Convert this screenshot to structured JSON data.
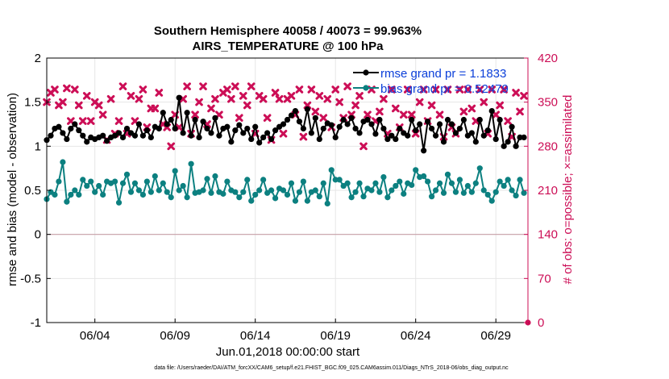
{
  "chart_data": {
    "type": "line",
    "title": "Southern Hemisphere 40058 / 40073 = 99.963%",
    "subtitle": "AIRS_TEMPERATURE @ 100 hPa",
    "xlabel": "Jun.01,2018 00:00:00 start",
    "ylabel": "rmse and bias (model - observation)",
    "ylabel_right": "# of obs: o=possible; ×=assimilated",
    "footnote": "data file: /Users/raeder/DAI/ATM_forcXX/CAM6_setup/f.e21.FHIST_BGC.f09_025.CAM6assim.011/Diags_NTrS_2018-06/obs_diag_output.nc",
    "xlim": [
      1.0,
      31.0
    ],
    "ylim": [
      -1,
      2
    ],
    "ylim_right": [
      0,
      420
    ],
    "x_ticks": [
      4,
      9,
      14,
      19,
      24,
      29
    ],
    "x_tick_labels": [
      "06/04",
      "06/09",
      "06/14",
      "06/19",
      "06/24",
      "06/29"
    ],
    "y_ticks": [
      -1,
      -0.5,
      0,
      0.5,
      1,
      1.5,
      2
    ],
    "y_tick_labels": [
      "-1",
      "-0.5",
      "0",
      "0.5",
      "1",
      "1.5",
      "2"
    ],
    "y_right_ticks": [
      0,
      70,
      140,
      210,
      280,
      350,
      420
    ],
    "y_right_tick_labels": [
      "0",
      "70",
      "140",
      "210",
      "280",
      "350",
      "420"
    ],
    "grid": true,
    "legend_position": "top-right",
    "x": [
      1.0,
      1.25,
      1.5,
      1.75,
      2.0,
      2.25,
      2.5,
      2.75,
      3.0,
      3.25,
      3.5,
      3.75,
      4.0,
      4.25,
      4.5,
      4.75,
      5.0,
      5.25,
      5.5,
      5.75,
      6.0,
      6.25,
      6.5,
      6.75,
      7.0,
      7.25,
      7.5,
      7.75,
      8.0,
      8.25,
      8.5,
      8.75,
      9.0,
      9.25,
      9.5,
      9.75,
      10.0,
      10.25,
      10.5,
      10.75,
      11.0,
      11.25,
      11.5,
      11.75,
      12.0,
      12.25,
      12.5,
      12.75,
      13.0,
      13.25,
      13.5,
      13.75,
      14.0,
      14.25,
      14.5,
      14.75,
      15.0,
      15.25,
      15.5,
      15.75,
      16.0,
      16.25,
      16.5,
      16.75,
      17.0,
      17.25,
      17.5,
      17.75,
      18.0,
      18.25,
      18.5,
      18.75,
      19.0,
      19.25,
      19.5,
      19.75,
      20.0,
      20.25,
      20.5,
      20.75,
      21.0,
      21.25,
      21.5,
      21.75,
      22.0,
      22.25,
      22.5,
      22.75,
      23.0,
      23.25,
      23.5,
      23.75,
      24.0,
      24.25,
      24.5,
      24.75,
      25.0,
      25.25,
      25.5,
      25.75,
      26.0,
      26.25,
      26.5,
      26.75,
      27.0,
      27.25,
      27.5,
      27.75,
      28.0,
      28.25,
      28.5,
      28.75,
      29.0,
      29.25,
      29.5,
      29.75,
      30.0,
      30.25,
      30.5,
      30.75
    ],
    "series": [
      {
        "name": "rmse grand pr = 1.1833",
        "axis": "left",
        "color": "#000000",
        "marker": "circle",
        "values": [
          1.07,
          1.12,
          1.2,
          1.22,
          1.15,
          1.08,
          1.2,
          1.25,
          1.18,
          1.12,
          1.05,
          1.1,
          1.08,
          1.1,
          1.12,
          1.06,
          1.1,
          1.12,
          1.15,
          1.1,
          1.2,
          1.15,
          1.12,
          1.25,
          1.12,
          1.18,
          1.1,
          1.22,
          1.2,
          1.38,
          1.25,
          1.3,
          1.2,
          1.55,
          1.15,
          1.38,
          1.12,
          1.3,
          1.1,
          1.28,
          1.2,
          1.15,
          1.32,
          1.12,
          1.2,
          1.22,
          1.05,
          1.18,
          1.24,
          1.15,
          1.2,
          1.08,
          1.22,
          1.04,
          1.1,
          1.15,
          1.08,
          1.18,
          1.22,
          1.25,
          1.3,
          1.35,
          1.4,
          1.28,
          1.2,
          1.42,
          1.15,
          1.32,
          1.08,
          1.2,
          1.26,
          1.24,
          1.1,
          1.22,
          1.3,
          1.25,
          1.32,
          1.2,
          1.15,
          1.28,
          1.3,
          1.25,
          1.14,
          1.3,
          1.2,
          1.08,
          1.12,
          1.08,
          1.2,
          1.15,
          1.12,
          1.3,
          1.18,
          1.25,
          0.95,
          1.28,
          1.2,
          1.12,
          1.25,
          1.05,
          1.3,
          1.25,
          1.15,
          1.2,
          1.3,
          1.12,
          1.15,
          1.05,
          1.3,
          1.12,
          1.18,
          1.4,
          1.08,
          1.3,
          1.0,
          1.05,
          1.22,
          1.0,
          1.1,
          1.1
        ]
      },
      {
        "name": "bias grand pr = 0.52479",
        "axis": "left",
        "color": "#0c8080",
        "marker": "circle",
        "values": [
          0.4,
          0.48,
          0.45,
          0.6,
          0.82,
          0.37,
          0.45,
          0.5,
          0.45,
          0.62,
          0.55,
          0.6,
          0.48,
          0.55,
          0.45,
          0.6,
          0.58,
          0.6,
          0.36,
          0.58,
          0.68,
          0.48,
          0.58,
          0.5,
          0.45,
          0.6,
          0.48,
          0.66,
          0.5,
          0.58,
          0.48,
          0.42,
          0.72,
          0.5,
          0.55,
          0.42,
          0.8,
          0.47,
          0.48,
          0.5,
          0.63,
          0.47,
          0.66,
          0.48,
          0.46,
          0.6,
          0.5,
          0.48,
          0.42,
          0.48,
          0.62,
          0.38,
          0.45,
          0.5,
          0.62,
          0.47,
          0.5,
          0.41,
          0.52,
          0.5,
          0.45,
          0.58,
          0.38,
          0.48,
          0.6,
          0.38,
          0.48,
          0.5,
          0.43,
          0.58,
          0.35,
          0.73,
          0.62,
          0.62,
          0.55,
          0.58,
          0.42,
          0.48,
          0.58,
          0.43,
          0.52,
          0.5,
          0.58,
          0.48,
          0.65,
          0.42,
          0.5,
          0.55,
          0.6,
          0.46,
          0.58,
          0.56,
          0.73,
          0.65,
          0.66,
          0.6,
          0.43,
          0.5,
          0.58,
          0.47,
          0.68,
          0.58,
          0.48,
          0.62,
          0.47,
          0.55,
          0.48,
          0.58,
          0.75,
          0.5,
          0.45,
          0.38,
          0.48,
          0.6,
          0.55,
          0.62,
          0.5,
          0.44,
          0.62,
          0.47
        ]
      },
      {
        "name": "obs assimilated",
        "axis": "right",
        "color": "#cc0e56",
        "marker": "x",
        "values": [
          350,
          365,
          370,
          345,
          350,
          372,
          320,
          370,
          345,
          320,
          360,
          320,
          350,
          345,
          330,
          290,
          355,
          300,
          320,
          375,
          300,
          360,
          320,
          355,
          370,
          310,
          340,
          340,
          365,
          315,
          310,
          280,
          330,
          310,
          355,
          375,
          300,
          330,
          350,
          375,
          315,
          340,
          355,
          330,
          365,
          370,
          355,
          375,
          325,
          360,
          345,
          375,
          300,
          360,
          355,
          325,
          290,
          365,
          355,
          300,
          355,
          360,
          330,
          370,
          295,
          345,
          370,
          335,
          360,
          325,
          355,
          310,
          370,
          350,
          325,
          375,
          330,
          345,
          360,
          280,
          330,
          370,
          320,
          335,
          355,
          300,
          370,
          340,
          310,
          330,
          370,
          330,
          300,
          350,
          370,
          320,
          345,
          370,
          330,
          295,
          370,
          310,
          300,
          370,
          335,
          370,
          340,
          320,
          370,
          350,
          300,
          370,
          330,
          345,
          370,
          320,
          295,
          365,
          335,
          360
        ]
      }
    ]
  }
}
